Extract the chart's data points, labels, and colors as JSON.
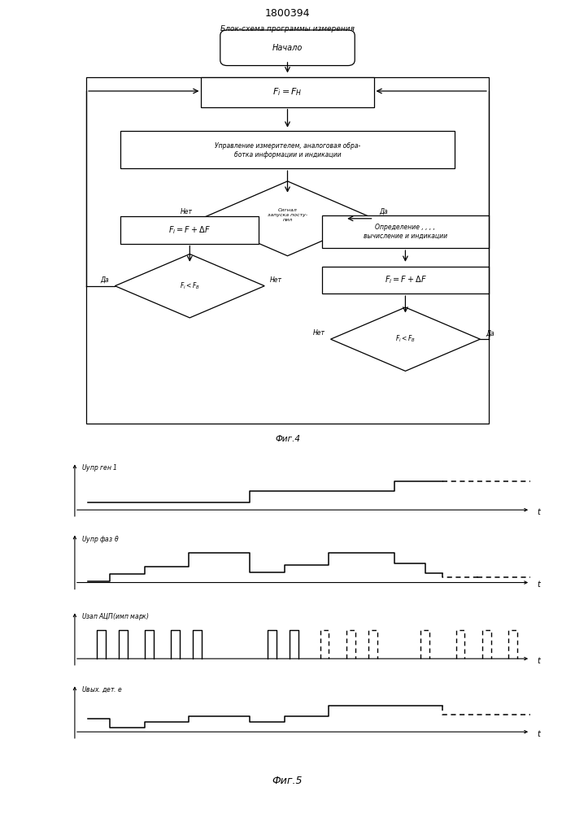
{
  "title": "1800394",
  "fig4_caption": "Блок-схема программы измерения",
  "fig4_label": "Фиг.4",
  "fig5_label": "Фиг.5",
  "start_text": "Начало",
  "box1_text": "$F_i = F_H$",
  "box2_line1": "Управление измерителем, аналоговая обра-",
  "box2_line2": "ботка информации и индикации",
  "d1_text": "Сигнал\nзапуска посту-\nпил",
  "no_text": "Нет",
  "yes_text": "Да",
  "box3_text": "$F_i = F + \\Delta F$",
  "box4_line1": "Определение , , , ,",
  "box4_line2": "вычисление и индикации",
  "d2_text": "$F_i < F_B$",
  "box5_text": "$F_i = F + \\Delta F$",
  "d3_text": "$F_i < F_B$",
  "lbl1": "$U$упр ген 1",
  "lbl2": "$U$упр фаз θ",
  "lbl3": "$U$зап АЦП(имп марк)",
  "lbl4": "$U$вых. дет. е"
}
